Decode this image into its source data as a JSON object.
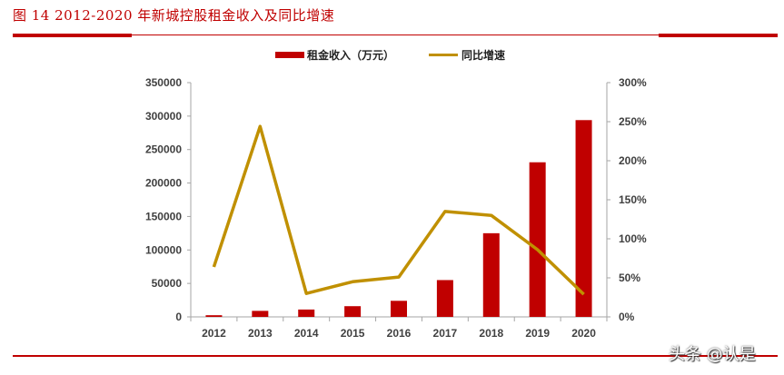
{
  "header": {
    "title": "图 14   2012-2020 年新城控股租金收入及同比增速"
  },
  "legend": {
    "bar_label": "租金收入（万元）",
    "line_label": "同比增速"
  },
  "colors": {
    "bar": "#c00000",
    "line": "#c09000",
    "accent_rule": "#c00000",
    "axis": "#a6a6a6",
    "tick_text": "#404040"
  },
  "watermark": "头条 @认是",
  "chart_data": {
    "type": "bar+line",
    "title": "2012-2020 年新城控股租金收入及同比增速",
    "categories": [
      "2012",
      "2013",
      "2014",
      "2015",
      "2016",
      "2017",
      "2018",
      "2019",
      "2020"
    ],
    "series": [
      {
        "name": "租金收入（万元）",
        "type": "bar",
        "axis": "left",
        "values": [
          2500,
          9000,
          11000,
          16000,
          24000,
          55000,
          125000,
          231000,
          294000
        ]
      },
      {
        "name": "同比增速",
        "type": "line",
        "axis": "right",
        "values": [
          0.64,
          2.44,
          0.3,
          0.45,
          0.51,
          1.35,
          1.3,
          0.86,
          0.29
        ]
      }
    ],
    "left_axis": {
      "ylim": [
        0,
        350000
      ],
      "ticks": [
        "0",
        "50000",
        "100000",
        "150000",
        "200000",
        "250000",
        "300000",
        "350000"
      ]
    },
    "right_axis": {
      "ylim": [
        0,
        3.0
      ],
      "ticks": [
        "0%",
        "50%",
        "100%",
        "150%",
        "200%",
        "250%",
        "300%"
      ]
    },
    "xlabel": "",
    "ylabel": "",
    "grid": false,
    "legend_position": "top"
  }
}
